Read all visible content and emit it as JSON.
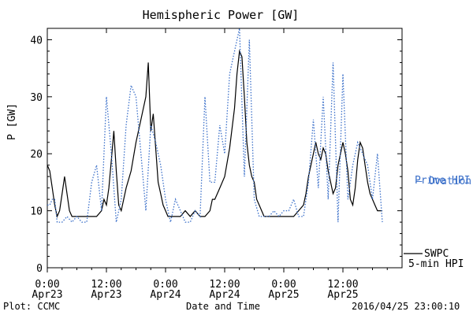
{
  "chart_data": {
    "type": "line",
    "title": "Hemispheric Power [GW]",
    "xlabel": "Date and Time",
    "ylabel": "P [GW]",
    "ylim": [
      0,
      42
    ],
    "xlim_hours": [
      0,
      72
    ],
    "yticks": [
      0,
      10,
      20,
      30,
      40
    ],
    "xticks": [
      {
        "hour": 0,
        "line1": "0:00",
        "line2": "Apr23"
      },
      {
        "hour": 12,
        "line1": "12:00",
        "line2": "Apr23"
      },
      {
        "hour": 24,
        "line1": "0:00",
        "line2": "Apr24"
      },
      {
        "hour": 36,
        "line1": "12:00",
        "line2": "Apr24"
      },
      {
        "hour": 48,
        "line1": "0:00",
        "line2": "Apr25"
      },
      {
        "hour": 60,
        "line1": "12:00",
        "line2": "Apr25"
      }
    ],
    "grid": false,
    "legend_position": "right",
    "series": [
      {
        "name": "SWPC 5-min HPI",
        "color": "#000000",
        "style": "solid",
        "legend": [
          "SWPC",
          "5-min HPI"
        ],
        "x": [
          0,
          0.5,
          1,
          1.5,
          2,
          2.5,
          3,
          3.5,
          4,
          4.5,
          5,
          5.5,
          6,
          6.5,
          7,
          8,
          9,
          10,
          11,
          11.5,
          12,
          12.5,
          13,
          13.5,
          14,
          14.5,
          15,
          15.5,
          16,
          17,
          18,
          19,
          20,
          20.5,
          21,
          21.5,
          22,
          22.5,
          23,
          23.5,
          24,
          24.5,
          25,
          26,
          27,
          28,
          29,
          30,
          31,
          32,
          33,
          33.5,
          34,
          35,
          36,
          37,
          38,
          38.5,
          39,
          39.5,
          40,
          40.5,
          41,
          41.5,
          42,
          42.5,
          43,
          43.5,
          44,
          45,
          46,
          47,
          48,
          49,
          50,
          51,
          52,
          52.5,
          53,
          53.5,
          54,
          54.5,
          55,
          55.5,
          56,
          56.5,
          57,
          57.5,
          58,
          58.5,
          59,
          59.5,
          60,
          60.5,
          61,
          61.5,
          62,
          62.5,
          63,
          63.5,
          64,
          64.5,
          65,
          65.5,
          66,
          66.5,
          67,
          67.5,
          68
        ],
        "values": [
          18,
          17,
          14,
          11,
          9,
          10,
          13,
          16,
          13,
          10,
          9,
          9,
          9,
          9,
          9,
          9,
          9,
          9,
          10,
          12,
          11,
          14,
          19,
          24,
          17,
          11,
          10,
          12,
          14,
          17,
          22,
          26,
          30,
          36,
          24,
          27,
          21,
          15,
          13,
          11,
          10,
          9,
          9,
          9,
          9,
          10,
          9,
          10,
          9,
          9,
          10,
          12,
          12,
          14,
          16,
          21,
          28,
          34,
          38,
          37,
          30,
          22,
          18,
          16,
          15,
          12,
          11,
          10,
          9,
          9,
          9,
          9,
          9,
          9,
          9,
          10,
          11,
          13,
          16,
          18,
          20,
          22,
          20,
          19,
          21,
          20,
          17,
          15,
          13,
          14,
          18,
          20,
          22,
          20,
          17,
          12,
          11,
          14,
          19,
          22,
          21,
          18,
          15,
          13,
          12,
          11,
          10,
          10,
          10
        ]
      },
      {
        "name": "Ovation Prime HPI",
        "color": "#3a6fc9",
        "style": "dotted",
        "legend": [
          "Ovation",
          "Prime HPI"
        ],
        "x": [
          0,
          0.5,
          1,
          1.5,
          2,
          3,
          4,
          5,
          6,
          7,
          8,
          9,
          10,
          11,
          12,
          13,
          14,
          15,
          16,
          17,
          18,
          19,
          20,
          21,
          22,
          23,
          24,
          25,
          26,
          27,
          28,
          29,
          30,
          31,
          32,
          33,
          34,
          35,
          36,
          37,
          38,
          39,
          40,
          41,
          42,
          43,
          44,
          45,
          46,
          47,
          48,
          49,
          50,
          51,
          52,
          53,
          54,
          55,
          56,
          57,
          58,
          59,
          60,
          61,
          62,
          63,
          64,
          65,
          66,
          67,
          68
        ],
        "values": [
          11,
          11,
          12,
          12,
          8,
          8,
          9,
          8,
          9,
          8,
          8,
          15,
          18,
          10,
          30,
          20,
          8,
          12,
          25,
          32,
          30,
          20,
          10,
          25,
          22,
          18,
          12,
          8,
          12,
          10,
          8,
          8,
          10,
          9,
          30,
          15,
          15,
          25,
          20,
          34,
          38,
          42,
          16,
          40,
          12,
          9,
          9,
          9,
          10,
          9,
          10,
          10,
          12,
          9,
          9,
          15,
          26,
          14,
          30,
          12,
          36,
          8,
          34,
          12,
          18,
          22,
          20,
          18,
          12,
          20,
          8
        ]
      }
    ]
  },
  "footer": {
    "left": "Plot: CCMC",
    "right": "2016/04/25 23:00:10"
  }
}
